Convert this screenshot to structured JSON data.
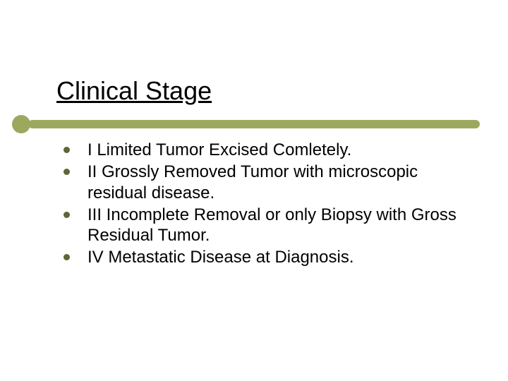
{
  "title": "Clinical Stage",
  "accent_color": "#9da85f",
  "bullet_color": "#5c6636",
  "text_color": "#000000",
  "title_fontsize": 36,
  "body_fontsize": 24,
  "bullets": [
    "I Limited Tumor Excised Comletely.",
    "II Grossly Removed Tumor with microscopic residual disease.",
    "III Incomplete Removal or only Biopsy with Gross Residual Tumor.",
    "IV Metastatic Disease at Diagnosis."
  ]
}
